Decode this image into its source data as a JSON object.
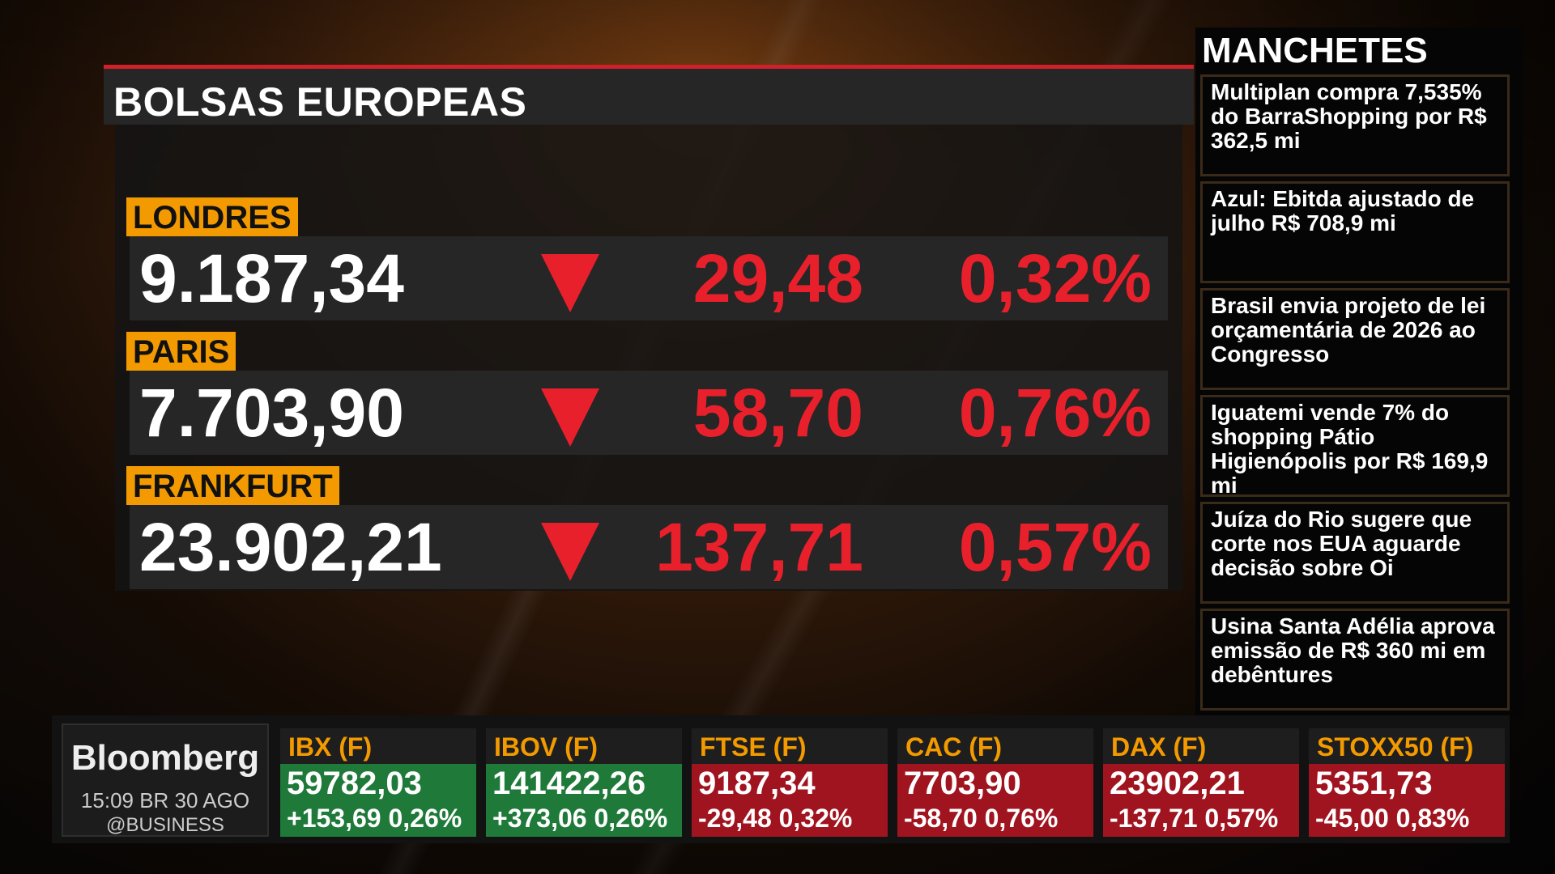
{
  "panel": {
    "title": "BOLSAS EUROPEAS",
    "rows": [
      {
        "label": "LONDRES",
        "value": "9.187,34",
        "change": "29,48",
        "percent": "0,32%"
      },
      {
        "label": "PARIS",
        "value": "7.703,90",
        "change": "58,70",
        "percent": "0,76%"
      },
      {
        "label": "FRANKFURT",
        "value": "23.902,21",
        "change": "137,71",
        "percent": "0,57%"
      }
    ]
  },
  "headlines": {
    "title": "MANCHETES",
    "items": [
      "Multiplan compra 7,535% do BarraShopping por R$ 362,5 mi",
      "Azul: Ebitda ajustado de julho R$ 708,9 mi",
      "Brasil envia projeto de lei orçamentária de 2026 ao Congresso",
      "Iguatemi vende 7% do shopping Pátio Higienópolis por R$ 169,9 mi",
      "Juíza do Rio sugere que corte nos EUA aguarde decisão sobre Oi",
      "Usina Santa Adélia aprova emissão de R$ 360 mi em debêntures"
    ]
  },
  "brand": {
    "name": "Bloomberg",
    "time": "15:09 BR  30 AGO",
    "handle": "@BUSINESS"
  },
  "ticker": [
    {
      "name": "IBX (F)",
      "value": "59782,03",
      "change": "+153,69 0,26%",
      "direction": "up"
    },
    {
      "name": "IBOV (F)",
      "value": "141422,26",
      "change": "+373,06 0,26%",
      "direction": "up"
    },
    {
      "name": "FTSE (F)",
      "value": "9187,34",
      "change": "-29,48 0,32%",
      "direction": "down"
    },
    {
      "name": "CAC (F)",
      "value": "7703,90",
      "change": "-58,70 0,76%",
      "direction": "down"
    },
    {
      "name": "DAX (F)",
      "value": "23902,21",
      "change": "-137,71 0,57%",
      "direction": "down"
    },
    {
      "name": "STOXX50 (F)",
      "value": "5351,73",
      "change": "-45,00 0,83%",
      "direction": "down"
    }
  ],
  "colors": {
    "accent": "#f39a00",
    "down": "#e8202c",
    "up": "#1f7a3a"
  },
  "icons": {
    "change_indicator": "down-triangle-icon"
  }
}
